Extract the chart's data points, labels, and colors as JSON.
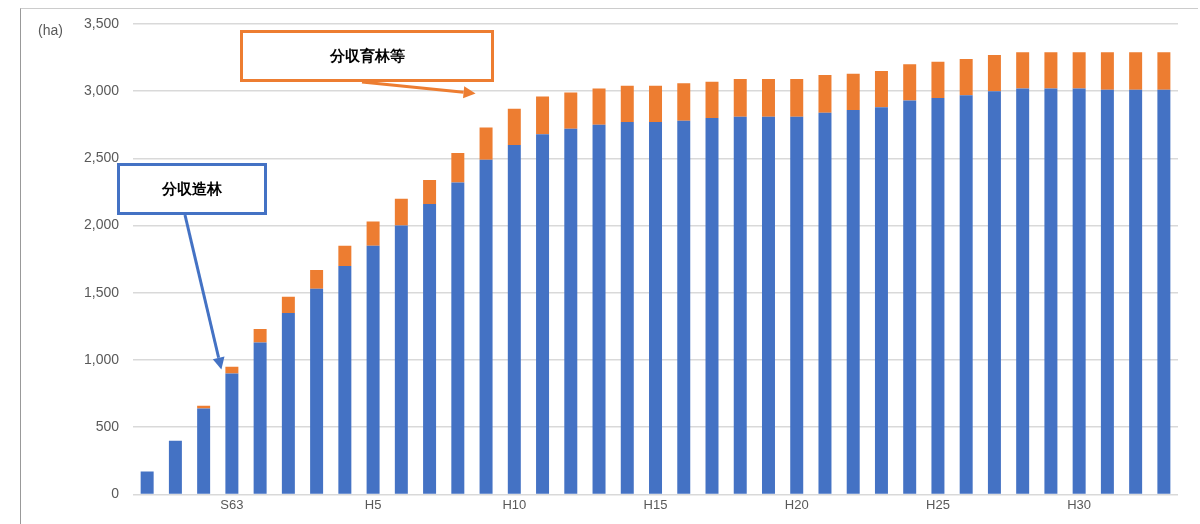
{
  "chart_data": {
    "type": "bar",
    "stacked": true,
    "ylabel": "(ha)",
    "categories": [
      null,
      null,
      null,
      "S63",
      null,
      null,
      null,
      null,
      "H5",
      null,
      null,
      null,
      null,
      "H10",
      null,
      null,
      null,
      null,
      "H15",
      null,
      null,
      null,
      null,
      "H20",
      null,
      null,
      null,
      null,
      "H25",
      null,
      null,
      null,
      null,
      "H30",
      null,
      null,
      null
    ],
    "series": [
      {
        "name": "分収造林",
        "color": "#4472c4",
        "values": [
          170,
          400,
          640,
          900,
          1130,
          1350,
          1530,
          1700,
          1850,
          2000,
          2160,
          2320,
          2490,
          2600,
          2680,
          2720,
          2750,
          2770,
          2770,
          2780,
          2800,
          2810,
          2810,
          2810,
          2840,
          2860,
          2880,
          2930,
          2950,
          2970,
          3000,
          3020,
          3020,
          3020,
          3010,
          3010,
          3010
        ]
      },
      {
        "name": "分収育林等",
        "color": "#ed7d31",
        "values": [
          0,
          0,
          20,
          50,
          100,
          120,
          140,
          150,
          180,
          200,
          180,
          220,
          240,
          270,
          280,
          270,
          270,
          270,
          270,
          280,
          270,
          280,
          280,
          280,
          280,
          270,
          270,
          270,
          270,
          270,
          270,
          270,
          270,
          270,
          280,
          280,
          280
        ]
      }
    ],
    "ylim": [
      0,
      3500
    ],
    "yticks": [
      {
        "value": 0,
        "label": "0"
      },
      {
        "value": 500,
        "label": "500"
      },
      {
        "value": 1000,
        "label": "1,000"
      },
      {
        "value": 1500,
        "label": "1,500"
      },
      {
        "value": 2000,
        "label": "2,000"
      },
      {
        "value": 2500,
        "label": "2,500"
      },
      {
        "value": 3000,
        "label": "3,000"
      },
      {
        "value": 3500,
        "label": "3,500"
      }
    ],
    "grid": "y",
    "legend": false
  }
}
